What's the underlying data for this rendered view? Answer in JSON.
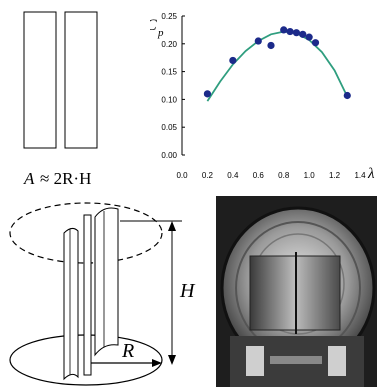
{
  "area_panel": {
    "formula_lhs": "A",
    "formula_rhs": "≈ 2R·H"
  },
  "rotor_panel": {
    "height_label": "H",
    "radius_label": "R"
  },
  "photo_panel": {},
  "chart_data": {
    "type": "scatter",
    "ylabel": "C",
    "ylabel_subscript": "p",
    "xlabel": "λ",
    "xlim": [
      0.0,
      1.4
    ],
    "ylim": [
      0.0,
      0.25
    ],
    "x_ticks": [
      0.0,
      0.2,
      0.4,
      0.6,
      0.8,
      1.0,
      1.2,
      1.4
    ],
    "x_tick_labels": [
      "0.0",
      "0.2",
      "0.4",
      "0.6",
      "0.8",
      "1.0",
      "1.2",
      "1.4"
    ],
    "y_ticks": [
      0.0,
      0.05,
      0.1,
      0.15,
      0.2,
      0.25
    ],
    "y_tick_labels": [
      "0.00",
      "0.05",
      "0.10",
      "0.15",
      "0.20",
      "0.25"
    ],
    "grid": false,
    "series": [
      {
        "kind": "points",
        "color": "#1c2a8a",
        "points": [
          [
            0.2,
            0.11
          ],
          [
            0.4,
            0.17
          ],
          [
            0.6,
            0.205
          ],
          [
            0.7,
            0.197
          ],
          [
            0.8,
            0.225
          ],
          [
            0.85,
            0.222
          ],
          [
            0.9,
            0.22
          ],
          [
            0.95,
            0.217
          ],
          [
            1.0,
            0.212
          ],
          [
            1.05,
            0.202
          ],
          [
            1.3,
            0.107
          ]
        ]
      },
      {
        "kind": "fit",
        "color": "#2f9e7f",
        "points": [
          [
            0.2,
            0.097
          ],
          [
            0.3,
            0.132
          ],
          [
            0.4,
            0.163
          ],
          [
            0.5,
            0.187
          ],
          [
            0.6,
            0.205
          ],
          [
            0.7,
            0.217
          ],
          [
            0.8,
            0.222
          ],
          [
            0.9,
            0.219
          ],
          [
            1.0,
            0.207
          ],
          [
            1.1,
            0.185
          ],
          [
            1.2,
            0.152
          ],
          [
            1.3,
            0.105
          ]
        ]
      }
    ]
  }
}
